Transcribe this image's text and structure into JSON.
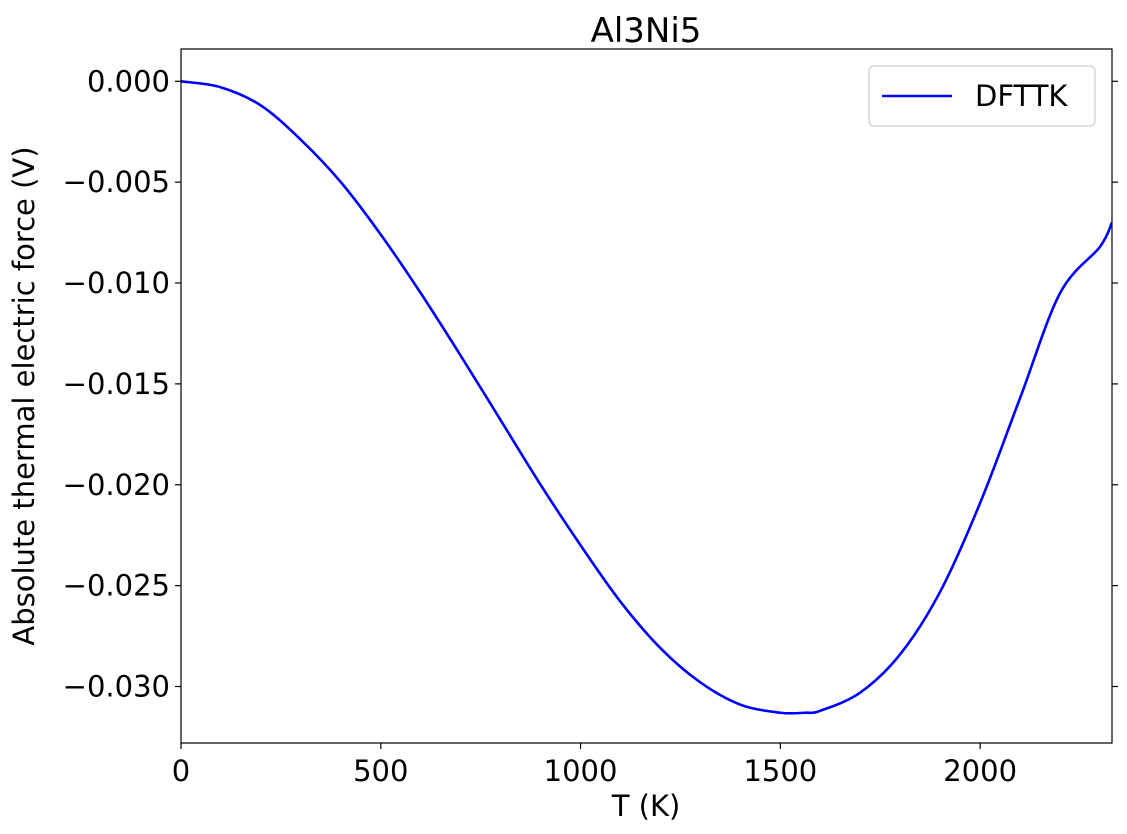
{
  "chart_data": {
    "type": "line",
    "title": "Al3Ni5",
    "xlabel": "T (K)",
    "ylabel": "Absolute thermal electric force (V)",
    "xlim": [
      0,
      2330
    ],
    "ylim": [
      -0.0328,
      0.0016
    ],
    "x_ticks": [
      0,
      500,
      1000,
      1500,
      2000
    ],
    "x_tick_labels": [
      "0",
      "500",
      "1000",
      "1500",
      "2000"
    ],
    "y_ticks": [
      0.0,
      -0.005,
      -0.01,
      -0.015,
      -0.02,
      -0.025,
      -0.03
    ],
    "y_tick_labels": [
      "0.000",
      "−0.005",
      "−0.010",
      "−0.015",
      "−0.020",
      "−0.025",
      "−0.030"
    ],
    "grid": false,
    "legend_position": "top-right",
    "series": [
      {
        "name": "DFTTK",
        "color": "#0000ff",
        "x": [
          0,
          100,
          200,
          300,
          400,
          500,
          600,
          700,
          800,
          900,
          1000,
          1100,
          1200,
          1300,
          1400,
          1500,
          1560,
          1600,
          1700,
          1800,
          1900,
          2000,
          2100,
          2200,
          2300,
          2330
        ],
        "y": [
          0.0,
          -0.0003,
          -0.0012,
          -0.0029,
          -0.005,
          -0.0076,
          -0.0105,
          -0.0136,
          -0.0168,
          -0.02,
          -0.023,
          -0.0258,
          -0.0281,
          -0.0298,
          -0.0309,
          -0.0313,
          -0.0313,
          -0.0312,
          -0.0303,
          -0.0284,
          -0.0253,
          -0.0209,
          -0.0157,
          -0.0105,
          -0.0082,
          -0.007
        ]
      }
    ]
  }
}
